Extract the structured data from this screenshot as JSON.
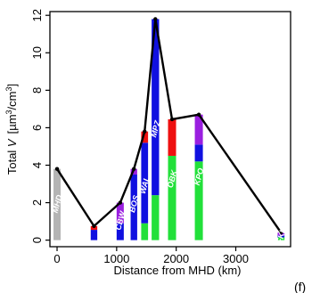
{
  "chart_data": {
    "type": "bar",
    "panel_label": "(f)",
    "xlabel": "Distance from MHD (km)",
    "ylabel": {
      "prefix": "Total ",
      "var": "V",
      "unit": "[µm",
      "exp1": "3",
      "mid": "/cm",
      "exp2": "3",
      "close": "]"
    },
    "xlim": [
      -120,
      3920
    ],
    "ylim": [
      -0.35,
      12.2
    ],
    "x_ticks": [
      0,
      1000,
      2000,
      3000
    ],
    "y_ticks": [
      0,
      2,
      4,
      6,
      8,
      10,
      12
    ],
    "grid": false,
    "colors": {
      "grey": "#b4b4b4",
      "green": "#22e03a",
      "blue": "#1010e0",
      "red": "#ee1010",
      "purple": "#9a1fe0",
      "line": "#000000"
    },
    "stations": [
      {
        "name": "MHD",
        "x": 0,
        "width": 120,
        "total": 3.8,
        "segments": [
          {
            "color": "grey",
            "value": 3.8
          }
        ]
      },
      {
        "name": "",
        "x": 620,
        "width": 110,
        "total": 0.75,
        "segments": [
          {
            "color": "blue",
            "value": 0.55
          },
          {
            "color": "red",
            "value": 0.2
          }
        ]
      },
      {
        "name": "CBW",
        "x": 1060,
        "width": 120,
        "total": 2.0,
        "segments": [
          {
            "color": "blue",
            "value": 0.9
          },
          {
            "color": "purple",
            "value": 1.1
          }
        ]
      },
      {
        "name": "BOS",
        "x": 1290,
        "width": 110,
        "total": 3.8,
        "segments": [
          {
            "color": "blue",
            "value": 3.5
          },
          {
            "color": "purple",
            "value": 0.3
          }
        ]
      },
      {
        "name": "WAL",
        "x": 1470,
        "width": 115,
        "total": 5.8,
        "segments": [
          {
            "color": "green",
            "value": 0.9
          },
          {
            "color": "blue",
            "value": 4.3
          },
          {
            "color": "red",
            "value": 0.6
          }
        ]
      },
      {
        "name": "MPZ",
        "x": 1650,
        "width": 125,
        "total": 11.8,
        "segments": [
          {
            "color": "green",
            "value": 2.4
          },
          {
            "color": "blue",
            "value": 9.4
          }
        ]
      },
      {
        "name": "OBK",
        "x": 1930,
        "width": 135,
        "total": 6.45,
        "segments": [
          {
            "color": "green",
            "value": 4.5
          },
          {
            "color": "red",
            "value": 1.95
          }
        ]
      },
      {
        "name": "KPO",
        "x": 2380,
        "width": 135,
        "total": 6.7,
        "segments": [
          {
            "color": "green",
            "value": 4.2
          },
          {
            "color": "blue",
            "value": 0.9
          },
          {
            "color": "purple",
            "value": 1.6
          }
        ]
      },
      {
        "name": "FKL",
        "x": 3760,
        "width": 115,
        "total": 0.4,
        "segments": [
          {
            "color": "green",
            "value": 0.15
          },
          {
            "color": "blue",
            "value": 0.1
          },
          {
            "color": "purple",
            "value": 0.15
          }
        ]
      }
    ]
  }
}
